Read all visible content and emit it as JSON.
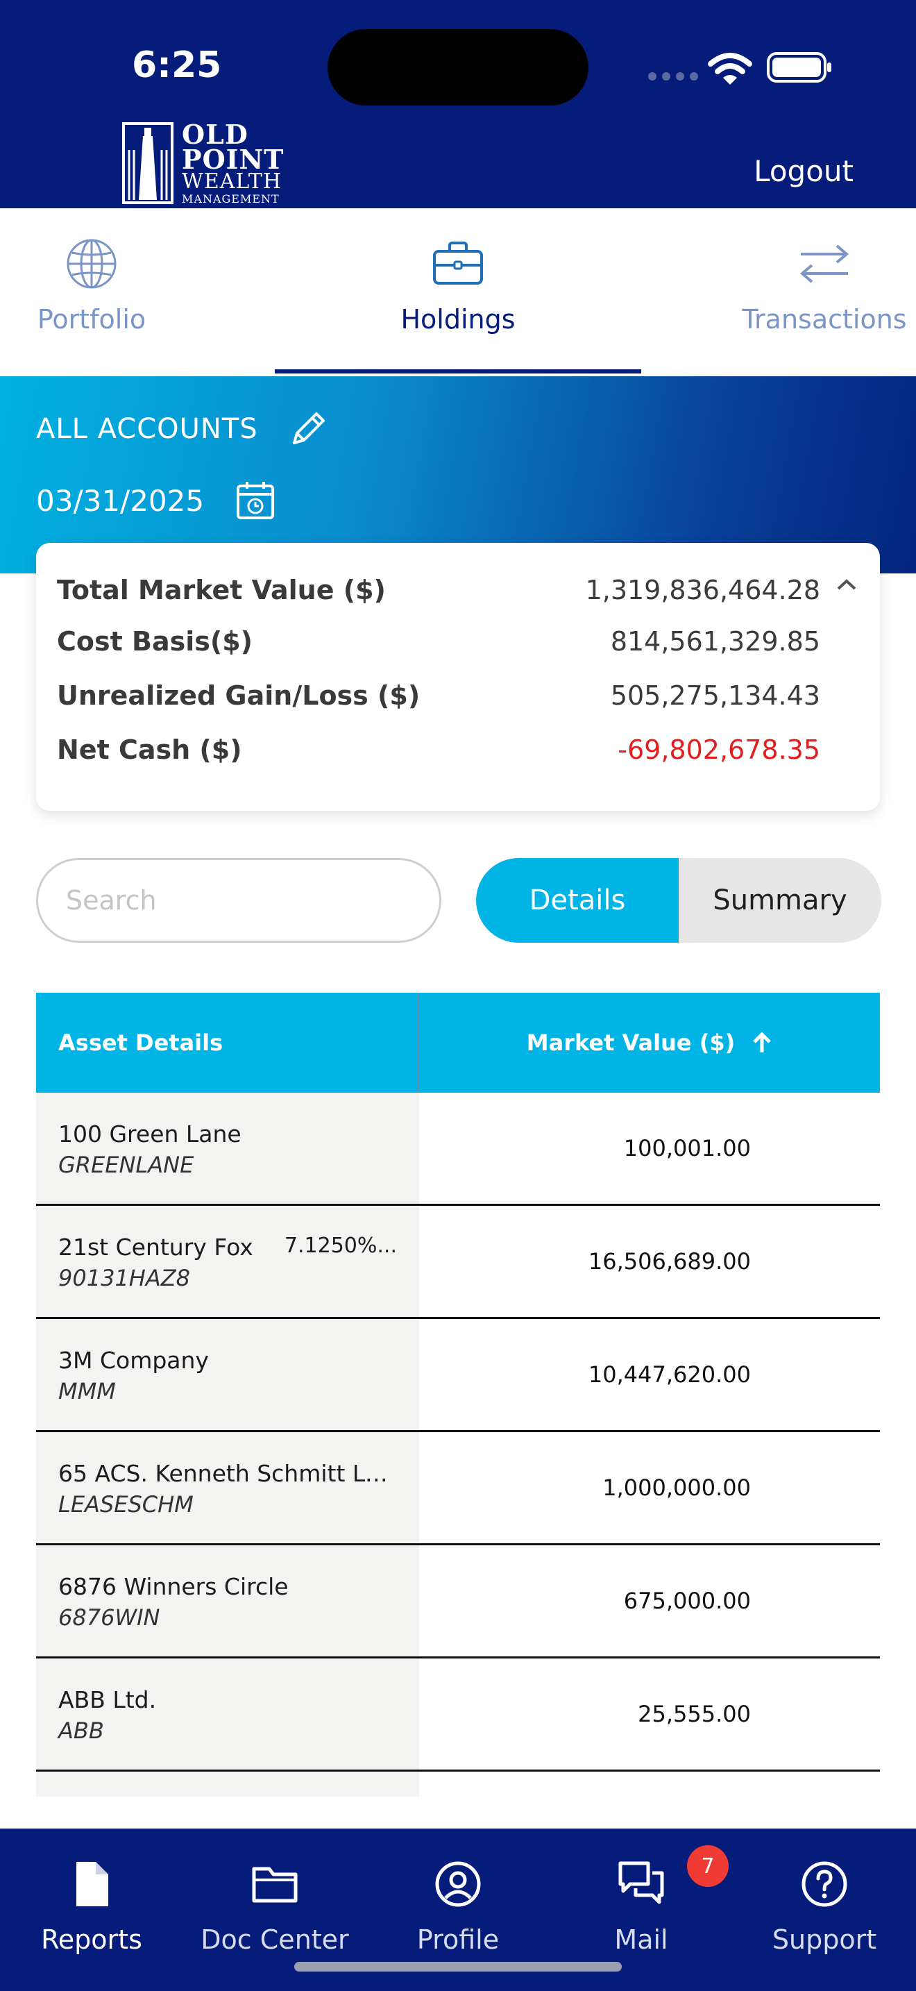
{
  "status_bar": {
    "time": "6:25"
  },
  "brand": {
    "line1": "OLD",
    "line2": "POINT",
    "line3": "WEALTH",
    "line4": "MANAGEMENT"
  },
  "header": {
    "logout_label": "Logout"
  },
  "tabs": [
    {
      "label": "Portfolio",
      "icon": "globe-icon",
      "active": false
    },
    {
      "label": "Holdings",
      "icon": "briefcase-icon",
      "active": true
    },
    {
      "label": "Transactions",
      "icon": "transfer-arrows-icon",
      "active": false
    }
  ],
  "banner": {
    "account_label": "ALL ACCOUNTS",
    "date": "03/31/2025"
  },
  "summary": {
    "rows": [
      {
        "label": "Total Market Value ($)",
        "value": "1,319,836,464.28"
      },
      {
        "label": "Cost Basis($)",
        "value": "814,561,329.85"
      },
      {
        "label": "Unrealized Gain/Loss ($)",
        "value": "505,275,134.43"
      },
      {
        "label": "Net Cash ($)",
        "value": "-69,802,678.35"
      }
    ]
  },
  "search": {
    "placeholder": "Search",
    "value": ""
  },
  "view_toggle": {
    "details_label": "Details",
    "summary_label": "Summary",
    "selected": "Details"
  },
  "table": {
    "headers": {
      "asset": "Asset Details",
      "market_value": "Market Value ($)"
    },
    "rows": [
      {
        "name": "100 Green Lane",
        "ticker": "GREENLANE",
        "extra": "",
        "market_value": "100,001.00"
      },
      {
        "name": "21st Century Fox",
        "ticker": "90131HAZ8",
        "extra": "7.1250%...",
        "market_value": "16,506,689.00"
      },
      {
        "name": "3M Company",
        "ticker": "MMM",
        "extra": "",
        "market_value": "10,447,620.00"
      },
      {
        "name": "65 ACS. Kenneth Schmitt Lea...",
        "ticker": "LEASESCHM",
        "extra": "",
        "market_value": "1,000,000.00"
      },
      {
        "name": "6876 Winners Circle",
        "ticker": "6876WIN",
        "extra": "",
        "market_value": "675,000.00"
      },
      {
        "name": "ABB Ltd.",
        "ticker": "ABB",
        "extra": "",
        "market_value": "25,555.00"
      }
    ]
  },
  "bottom_nav": {
    "items": [
      {
        "label": "Reports",
        "icon": "document-icon",
        "active": true
      },
      {
        "label": "Doc Center",
        "icon": "folder-icon",
        "active": false
      },
      {
        "label": "Profile",
        "icon": "user-circle-icon",
        "active": false
      },
      {
        "label": "Mail",
        "icon": "chat-bubbles-icon",
        "active": false
      },
      {
        "label": "Support",
        "icon": "help-circle-icon",
        "active": false
      }
    ],
    "mail_badge": "7"
  },
  "colors": {
    "navy": "#061c7a",
    "accent": "#00b4e6",
    "negative": "#e31d1d"
  }
}
